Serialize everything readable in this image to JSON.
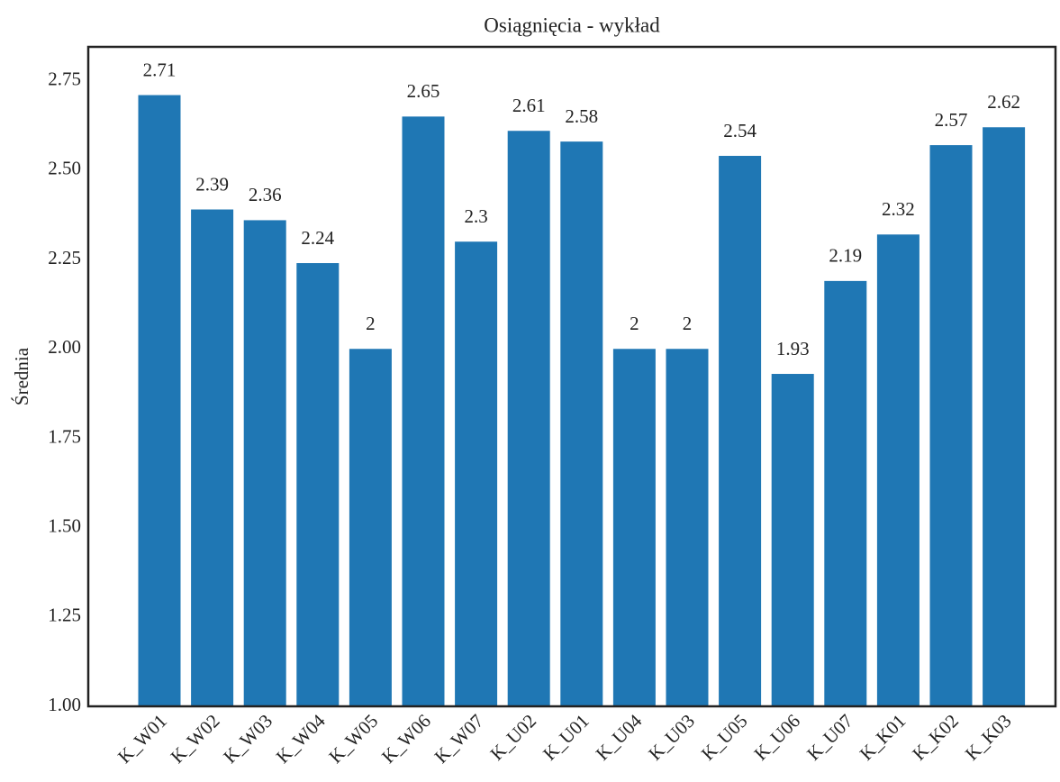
{
  "chart_data": {
    "type": "bar",
    "title": "Osiągnięcia - wykład",
    "ylabel": "Średnia",
    "categories": [
      "K_W01",
      "K_W02",
      "K_W03",
      "K_W04",
      "K_W05",
      "K_W06",
      "K_W07",
      "K_U02",
      "K_U01",
      "K_U04",
      "K_U03",
      "K_U05",
      "K_U06",
      "K_U07",
      "K_K01",
      "K_K02",
      "K_K03"
    ],
    "values": [
      2.71,
      2.39,
      2.36,
      2.24,
      2,
      2.65,
      2.3,
      2.61,
      2.58,
      2,
      2,
      2.54,
      1.93,
      2.19,
      2.32,
      2.57,
      2.62
    ],
    "color": "#1f77b4",
    "ylim": [
      1,
      2.845
    ],
    "yticks": [
      {
        "value": 1,
        "label": "1.00"
      },
      {
        "value": 1.25,
        "label": "1.25"
      },
      {
        "value": 1.5,
        "label": "1.50"
      },
      {
        "value": 1.75,
        "label": "1.75"
      },
      {
        "value": 2,
        "label": "2.00"
      },
      {
        "value": 2.25,
        "label": "2.25"
      },
      {
        "value": 2.5,
        "label": "2.50"
      },
      {
        "value": 2.75,
        "label": "2.75"
      }
    ],
    "grid": false
  }
}
